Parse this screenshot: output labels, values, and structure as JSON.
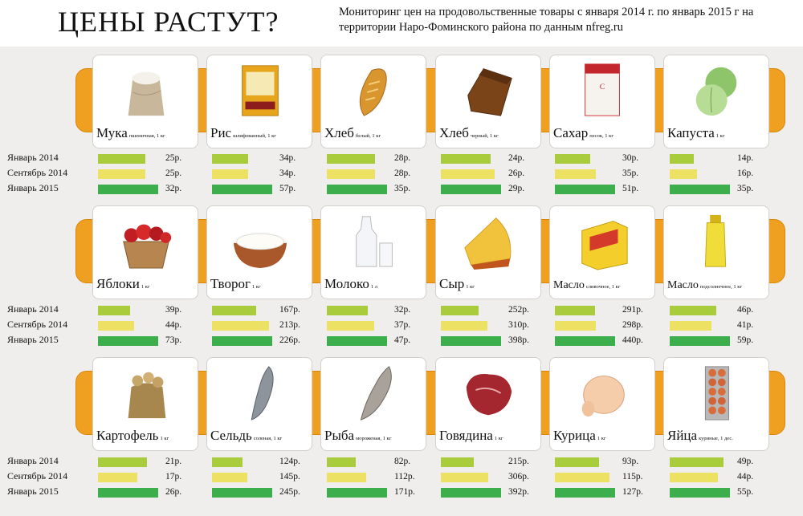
{
  "header": {
    "title": "ЦЕНЫ РАСТУТ?",
    "subtitle": "Мониторинг цен на продовольственные товары с января 2014 г. по январь 2015 г на территории Наро-Фоминского района по данным nfreg.ru"
  },
  "periods": [
    "Январь 2014",
    "Сентябрь 2014",
    "Январь 2015"
  ],
  "colors": {
    "jan2014": "#a9cc3c",
    "sep2014": "#ece163",
    "jan2015": "#3cae4c",
    "band": "#f0a020"
  },
  "chart_data": {
    "type": "bar",
    "title": "ЦЕНЫ РАСТУТ?",
    "series_names": [
      "Январь 2014",
      "Сентябрь 2014",
      "Январь 2015"
    ],
    "unit": "р.",
    "products": [
      {
        "name": "Мука",
        "unit": "пшеничная, 1 кг",
        "icon": "flour-sack-icon",
        "values": [
          25,
          25,
          32
        ]
      },
      {
        "name": "Рис",
        "unit": "шлифованный, 1 кг",
        "icon": "rice-pack-icon",
        "values": [
          34,
          34,
          57
        ]
      },
      {
        "name": "Хлеб",
        "unit": "белый, 1 кг",
        "icon": "white-bread-icon",
        "values": [
          28,
          28,
          35
        ]
      },
      {
        "name": "Хлеб",
        "unit": "черный, 1 кг",
        "icon": "black-bread-icon",
        "values": [
          24,
          26,
          29
        ]
      },
      {
        "name": "Сахар",
        "unit": "песок, 1 кг",
        "icon": "sugar-pack-icon",
        "values": [
          30,
          35,
          51
        ]
      },
      {
        "name": "Капуста",
        "unit": "1 кг",
        "icon": "cabbage-icon",
        "values": [
          14,
          16,
          35
        ]
      },
      {
        "name": "Яблоки",
        "unit": "1 кг",
        "icon": "apples-basket-icon",
        "values": [
          39,
          44,
          73
        ]
      },
      {
        "name": "Творог",
        "unit": "1 кг",
        "icon": "cottage-cheese-icon",
        "values": [
          167,
          213,
          226
        ]
      },
      {
        "name": "Молоко",
        "unit": "1 л",
        "icon": "milk-bottle-icon",
        "values": [
          32,
          37,
          47
        ]
      },
      {
        "name": "Сыр",
        "unit": "1 кг",
        "icon": "cheese-icon",
        "values": [
          252,
          310,
          398
        ]
      },
      {
        "name": "Масло",
        "unit": "сливочное, 1 кг",
        "icon": "butter-pack-icon",
        "values": [
          291,
          298,
          440
        ]
      },
      {
        "name": "Масло",
        "unit": "подсолнечное, 1 кг",
        "icon": "sunflower-oil-icon",
        "values": [
          46,
          41,
          59
        ]
      },
      {
        "name": "Картофель",
        "unit": "1 кг",
        "icon": "potato-sack-icon",
        "values": [
          21,
          17,
          26
        ]
      },
      {
        "name": "Сельдь",
        "unit": "соленая, 1 кг",
        "icon": "herring-icon",
        "values": [
          124,
          145,
          245
        ]
      },
      {
        "name": "Рыба",
        "unit": "мороженая, 1 кг",
        "icon": "frozen-fish-icon",
        "values": [
          82,
          112,
          171
        ]
      },
      {
        "name": "Говядина",
        "unit": "1 кг",
        "icon": "beef-icon",
        "values": [
          215,
          306,
          392
        ]
      },
      {
        "name": "Курица",
        "unit": "1 кг",
        "icon": "chicken-icon",
        "values": [
          93,
          115,
          127
        ]
      },
      {
        "name": "Яйца",
        "unit": "куриные, 1 дес.",
        "icon": "eggs-carton-icon",
        "values": [
          49,
          44,
          55
        ]
      }
    ]
  }
}
